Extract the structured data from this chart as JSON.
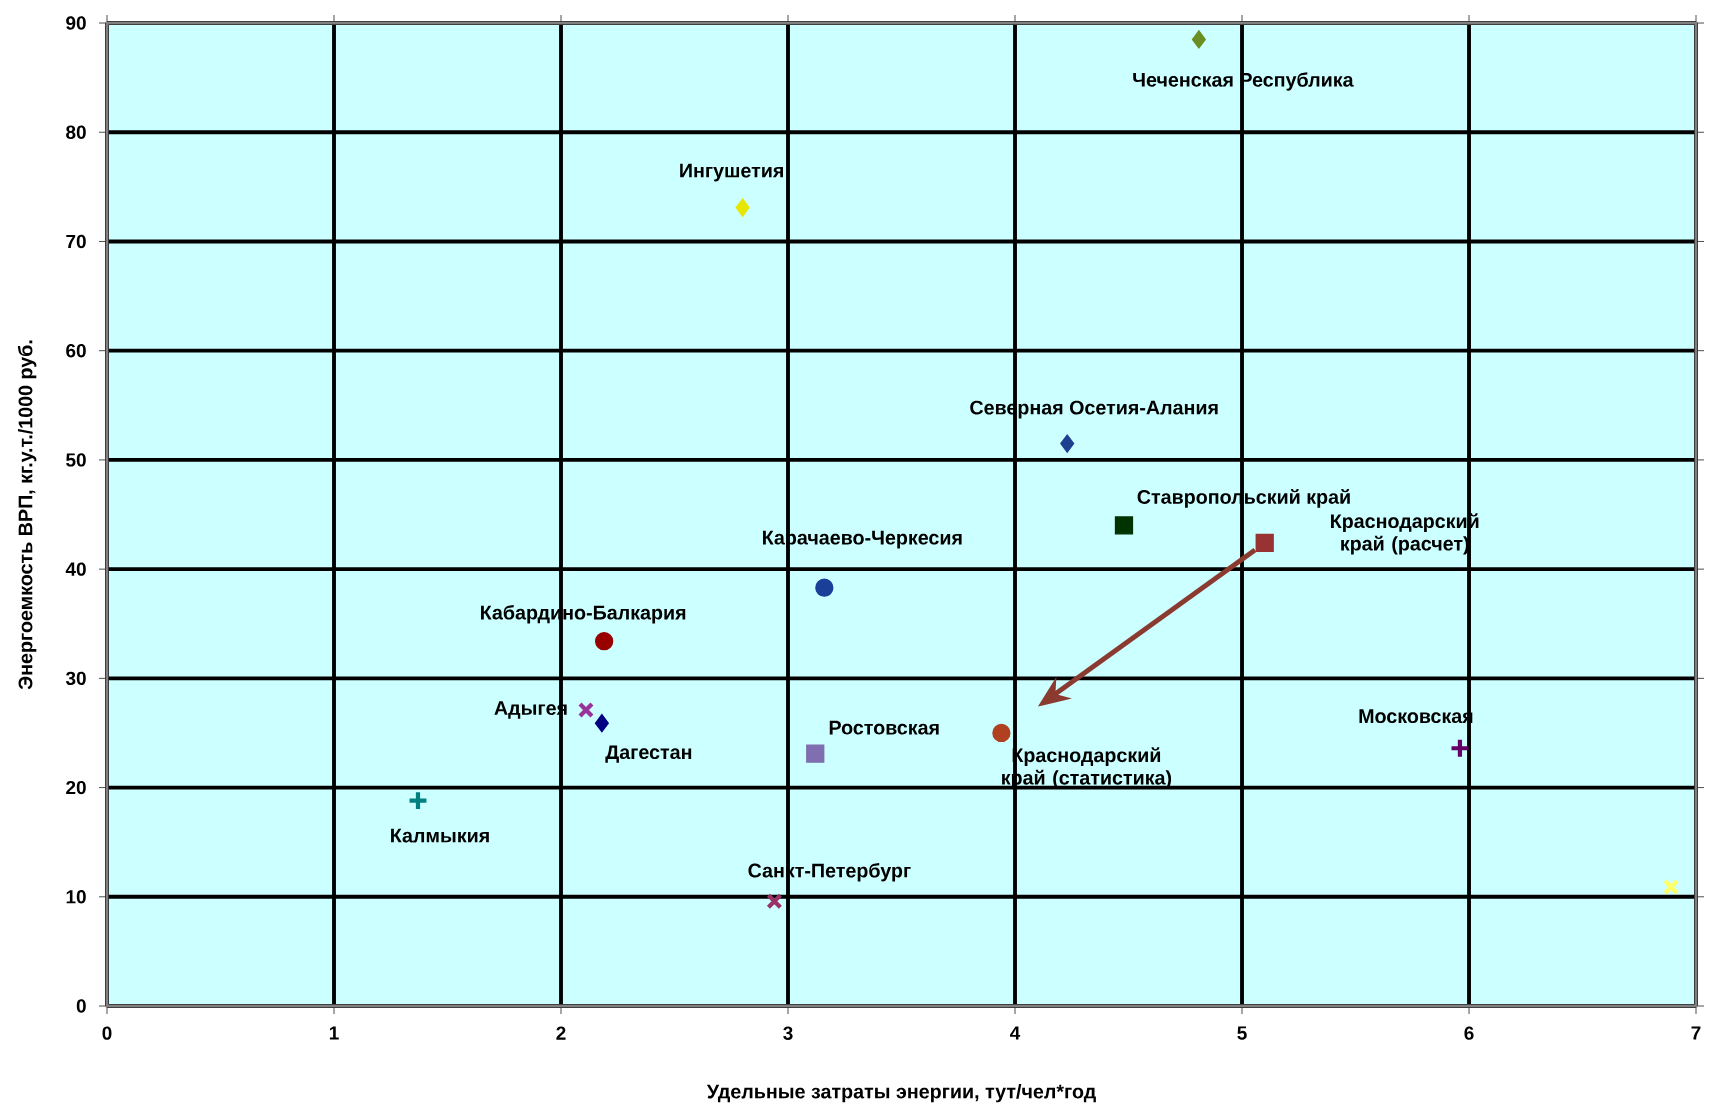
{
  "chart_data": {
    "type": "scatter",
    "xlabel": "Удельные затраты энергии, тут/чел*год",
    "ylabel": "Энергоемкость ВРП, кг.у.т./1000 руб.",
    "xlim": [
      0,
      7
    ],
    "xticks": [
      0,
      1,
      2,
      3,
      4,
      5,
      6,
      7
    ],
    "ylim": [
      0,
      90
    ],
    "yticks": [
      0,
      10,
      20,
      30,
      40,
      50,
      60,
      70,
      80,
      90
    ],
    "grid": true,
    "series": [
      {
        "name": "Чеченская Республика",
        "color": "#6b8e23",
        "marker": "diamond",
        "x": [
          4.81
        ],
        "values": [
          88.5
        ]
      },
      {
        "name": "Ингушетия",
        "color": "#e6e600",
        "marker": "diamond",
        "x": [
          2.8
        ],
        "values": [
          73.1
        ]
      },
      {
        "name": "Северная Осетия-Алания",
        "color": "#1f3f8f",
        "marker": "diamond",
        "x": [
          4.23
        ],
        "values": [
          51.5
        ]
      },
      {
        "name": "Ставропольский край",
        "color": "#003300",
        "marker": "square",
        "x": [
          4.48
        ],
        "values": [
          44
        ]
      },
      {
        "name": "Краснодарский край (расчет)",
        "color": "#993333",
        "marker": "square",
        "x": [
          5.1
        ],
        "values": [
          42.4
        ]
      },
      {
        "name": "Карачаево-Черкесия",
        "color": "#1a3f99",
        "marker": "circle",
        "x": [
          3.16
        ],
        "values": [
          38.3
        ]
      },
      {
        "name": "Кабардино-Балкария",
        "color": "#990000",
        "marker": "circle",
        "x": [
          2.19
        ],
        "values": [
          33.4
        ]
      },
      {
        "name": "Адыгея",
        "color": "#993399",
        "marker": "cross",
        "x": [
          2.11
        ],
        "values": [
          27.1
        ]
      },
      {
        "name": "Дагестан",
        "color": "#000080",
        "marker": "diamond",
        "x": [
          2.18
        ],
        "values": [
          25.9
        ]
      },
      {
        "name": "Ростовская",
        "color": "#7f6fb0",
        "marker": "square",
        "x": [
          3.12
        ],
        "values": [
          23.1
        ]
      },
      {
        "name": "Краснодарский край (статистика)",
        "color": "#b04020",
        "marker": "circle",
        "x": [
          3.94
        ],
        "values": [
          25
        ]
      },
      {
        "name": "Московская",
        "color": "#660066",
        "marker": "plus",
        "x": [
          5.96
        ],
        "values": [
          23.6
        ]
      },
      {
        "name": "Калмыкия",
        "color": "#008080",
        "marker": "plus",
        "x": [
          1.37
        ],
        "values": [
          18.8
        ]
      },
      {
        "name": "Санкт-Петербург",
        "color": "#993366",
        "marker": "cross",
        "x": [
          2.94
        ],
        "values": [
          9.6
        ]
      },
      {
        "color": "#ffff66",
        "marker": "cross",
        "x": [
          6.89
        ],
        "values": [
          10.9
        ]
      }
    ]
  }
}
